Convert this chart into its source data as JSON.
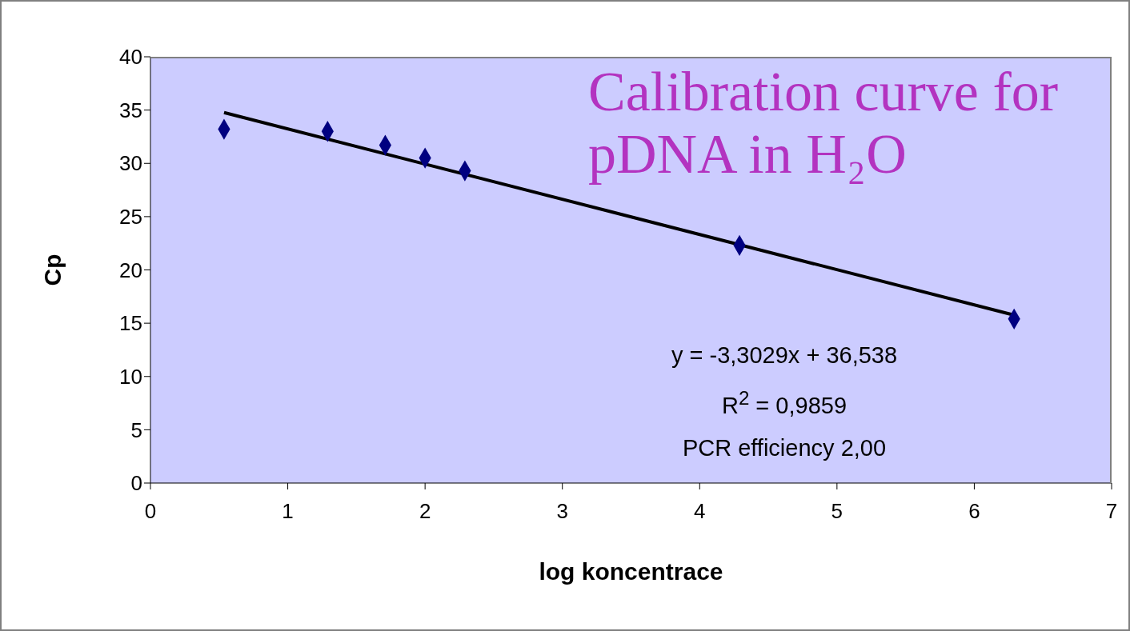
{
  "chart_data": {
    "type": "scatter",
    "title": "Calibration curve for pDNA in H₂O",
    "xlabel": "log koncentrace",
    "ylabel": "Cp",
    "x": [
      0.536,
      1.29,
      1.71,
      2.0,
      2.29,
      4.29,
      6.29
    ],
    "series": [
      {
        "color": "#000080",
        "values": [
          33.2,
          33.0,
          31.7,
          30.5,
          29.3,
          22.3,
          15.4
        ]
      },
      {
        "type": "line",
        "color": "#000000",
        "marker": "none",
        "x": [
          0.536,
          6.29
        ],
        "values": [
          34.77,
          15.76
        ]
      }
    ],
    "xlim": [
      0,
      7
    ],
    "xticks": [
      0,
      1,
      2,
      3,
      4,
      5,
      6,
      7
    ],
    "ylim": [
      0,
      40
    ],
    "yticks": [
      0,
      5,
      10,
      15,
      20,
      25,
      30,
      35,
      40
    ],
    "marker": "diamond",
    "grid": false,
    "legend": false,
    "annotations": [
      "y = -3,3029x + 36,538",
      "R$^{2}$ = 0,9859",
      "PCR efficiency 2,00"
    ]
  }
}
